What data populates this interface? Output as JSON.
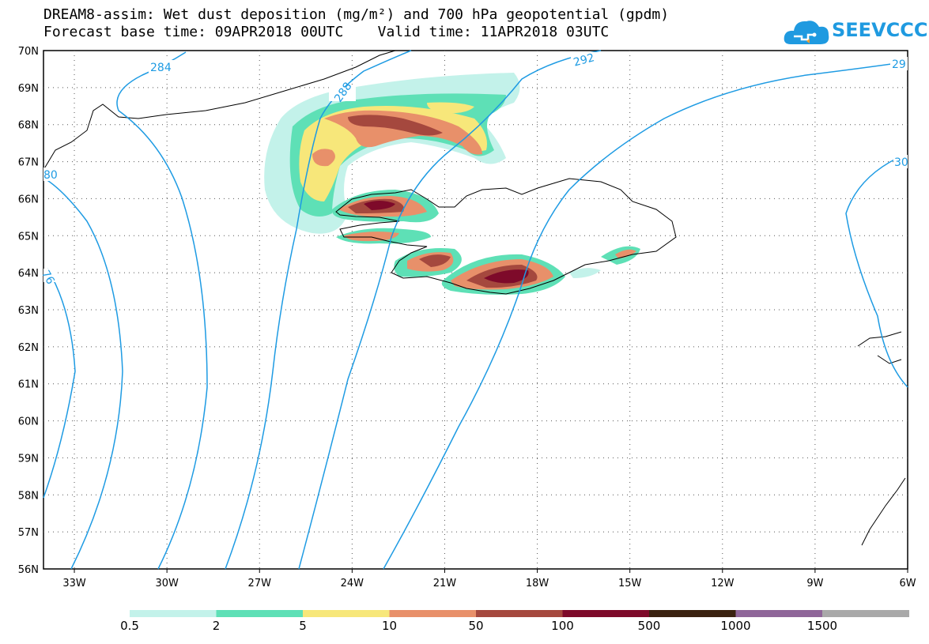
{
  "title_line1": "DREAM8-assim: Wet dust deposition (mg/m²) and 700 hPa geopotential (gpdm)",
  "title_line2": "Forecast base time: 09APR2018 00UTC    Valid time: 11APR2018 03UTC",
  "logo": {
    "text": "SEEVCCC",
    "icon": "cloud-logo-icon",
    "color": "#1f9ae0"
  },
  "map": {
    "lon_range": [
      -34,
      -6
    ],
    "lat_range": [
      56,
      70
    ],
    "lon_ticks": [
      "33W",
      "30W",
      "27W",
      "24W",
      "21W",
      "18W",
      "15W",
      "12W",
      "9W",
      "6W"
    ],
    "lat_ticks": [
      "70N",
      "69N",
      "68N",
      "67N",
      "66N",
      "65N",
      "64N",
      "63N",
      "62N",
      "61N",
      "60N",
      "59N",
      "58N",
      "57N",
      "56N"
    ],
    "contour_color": "#1e9be3",
    "contour_labels": [
      "284",
      "288",
      "292",
      "29",
      "30",
      "80",
      "76"
    ]
  },
  "legend": {
    "colors": [
      "#c3f2ea",
      "#5ee0b6",
      "#f7e77a",
      "#e8906a",
      "#a5483e",
      "#7e0a2a",
      "#3a2210",
      "#8f6699",
      "#a9a9a9"
    ],
    "labels": [
      "0.5",
      "2",
      "5",
      "10",
      "50",
      "100",
      "500",
      "1000",
      "1500"
    ]
  }
}
